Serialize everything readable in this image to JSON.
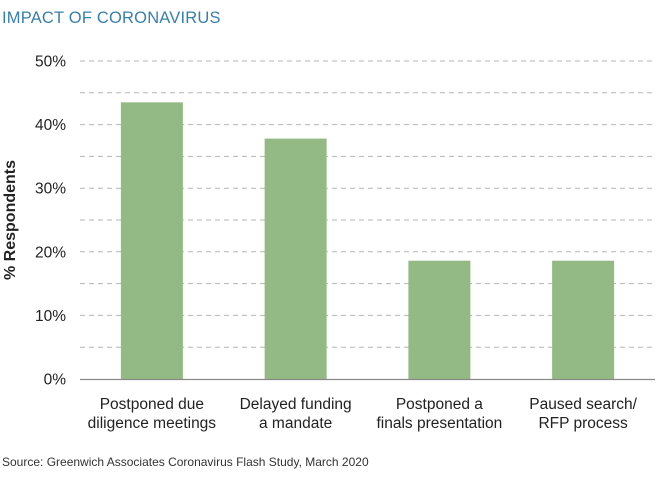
{
  "title": "IMPACT OF CORONAVIRUS",
  "source": "Source: Greenwich Associates Coronavirus Flash Study, March 2020",
  "colors": {
    "title": "#3a7fa6",
    "bar": "#93ba84",
    "grid": "#b5b5b5",
    "axis": "#8a8a8a",
    "text": "#222222"
  },
  "chart_data": {
    "type": "bar",
    "title": "IMPACT OF CORONAVIRUS",
    "xlabel": "",
    "ylabel": "% Respondents",
    "categories": [
      [
        "Postponed due",
        "diligence meetings"
      ],
      [
        "Delayed funding",
        "a mandate"
      ],
      [
        "Postponed a",
        "finals presentation"
      ],
      [
        "Paused search/",
        "RFP process"
      ]
    ],
    "values": [
      43.5,
      37.8,
      18.6,
      18.6
    ],
    "ylim": [
      0,
      50
    ],
    "yticks": [
      0,
      10,
      20,
      30,
      40,
      50
    ],
    "ytick_labels": [
      "0%",
      "10%",
      "20%",
      "30%",
      "40%",
      "50%"
    ],
    "minor_gridlines": [
      5,
      15,
      25,
      35,
      45
    ],
    "grid": true,
    "legend": "none"
  }
}
